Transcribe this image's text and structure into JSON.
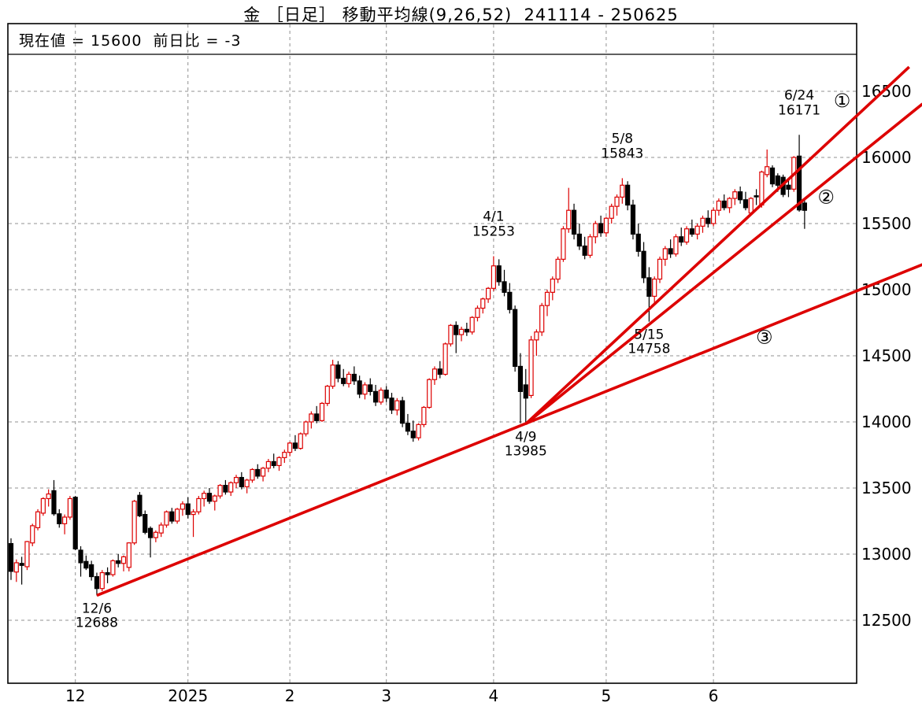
{
  "title": {
    "text": "金 ［日足］ 移動平均線(9,26,52)  241114 - 250625",
    "instrument": "金",
    "timeframe": "日足",
    "indicator": "移動平均線(9,26,52)",
    "ma_periods": [
      9,
      26,
      52
    ],
    "period": "241114 - 250625"
  },
  "status": {
    "text": "現在値 = 15600  前日比 = -3",
    "label_current": "現在値",
    "current_value": "15600",
    "label_change": "前日比",
    "change_value": "-3"
  },
  "colors": {
    "up_candle": "#dd0000",
    "down_candle": "#000000",
    "trendline": "#dd0000",
    "grid": "#909090",
    "frame": "#000000",
    "background": "#ffffff"
  },
  "chart_data": {
    "type": "candlestick",
    "title": "金 ［日足］ 移動平均線(9,26,52)  241114 - 250625",
    "ylim": [
      12000,
      17000
    ],
    "y_ticks": [
      16500,
      16000,
      15500,
      15000,
      14500,
      14000,
      13500,
      13000,
      12500
    ],
    "x_ticks": [
      {
        "label": "12",
        "day": 12
      },
      {
        "label": "2025",
        "day": 33
      },
      {
        "label": "2",
        "day": 52
      },
      {
        "label": "3",
        "day": 70
      },
      {
        "label": "4",
        "day": 90
      },
      {
        "label": "5",
        "day": 111
      },
      {
        "label": "6",
        "day": 131
      }
    ],
    "candles_format": [
      "open",
      "high",
      "low",
      "close"
    ],
    "candles": [
      [
        13080,
        13120,
        12805,
        12870
      ],
      [
        12865,
        12960,
        12790,
        12935
      ],
      [
        12930,
        12980,
        12770,
        12915
      ],
      [
        12905,
        13100,
        12880,
        13095
      ],
      [
        13085,
        13230,
        13060,
        13215
      ],
      [
        13200,
        13340,
        13180,
        13320
      ],
      [
        13310,
        13430,
        13290,
        13420
      ],
      [
        13420,
        13490,
        13360,
        13455
      ],
      [
        13480,
        13560,
        13290,
        13305
      ],
      [
        13305,
        13340,
        13200,
        13230
      ],
      [
        13230,
        13300,
        13150,
        13280
      ],
      [
        13280,
        13440,
        13260,
        13420
      ],
      [
        13430,
        13440,
        13030,
        13040
      ],
      [
        13030,
        13060,
        12830,
        12935
      ],
      [
        12945,
        12990,
        12880,
        12895
      ],
      [
        12920,
        12950,
        12800,
        12830
      ],
      [
        12830,
        12860,
        12688,
        12740
      ],
      [
        12740,
        12880,
        12720,
        12860
      ],
      [
        12860,
        12900,
        12780,
        12845
      ],
      [
        12845,
        12960,
        12830,
        12950
      ],
      [
        12950,
        13000,
        12900,
        12930
      ],
      [
        12930,
        12990,
        12870,
        12980
      ],
      [
        12900,
        13090,
        12870,
        13085
      ],
      [
        13085,
        13410,
        13070,
        13400
      ],
      [
        13445,
        13470,
        13280,
        13290
      ],
      [
        13300,
        13330,
        13150,
        13165
      ],
      [
        13195,
        13210,
        12975,
        13125
      ],
      [
        13125,
        13180,
        13090,
        13165
      ],
      [
        13160,
        13240,
        13130,
        13220
      ],
      [
        13220,
        13330,
        13200,
        13320
      ],
      [
        13320,
        13350,
        13230,
        13250
      ],
      [
        13250,
        13350,
        13230,
        13340
      ],
      [
        13340,
        13400,
        13290,
        13380
      ],
      [
        13380,
        13430,
        13270,
        13300
      ],
      [
        13300,
        13340,
        13130,
        13320
      ],
      [
        13320,
        13440,
        13300,
        13420
      ],
      [
        13420,
        13480,
        13360,
        13460
      ],
      [
        13460,
        13500,
        13380,
        13400
      ],
      [
        13400,
        13450,
        13330,
        13440
      ],
      [
        13440,
        13530,
        13420,
        13520
      ],
      [
        13520,
        13560,
        13450,
        13470
      ],
      [
        13470,
        13550,
        13440,
        13540
      ],
      [
        13540,
        13600,
        13500,
        13580
      ],
      [
        13580,
        13620,
        13490,
        13510
      ],
      [
        13510,
        13570,
        13460,
        13560
      ],
      [
        13560,
        13650,
        13540,
        13640
      ],
      [
        13640,
        13680,
        13570,
        13590
      ],
      [
        13590,
        13660,
        13550,
        13650
      ],
      [
        13650,
        13720,
        13620,
        13700
      ],
      [
        13700,
        13760,
        13650,
        13670
      ],
      [
        13670,
        13740,
        13630,
        13730
      ],
      [
        13730,
        13790,
        13690,
        13770
      ],
      [
        13770,
        13850,
        13740,
        13840
      ],
      [
        13840,
        13900,
        13780,
        13800
      ],
      [
        13800,
        13920,
        13790,
        13910
      ],
      [
        13910,
        14010,
        13890,
        14000
      ],
      [
        14000,
        14080,
        13950,
        14060
      ],
      [
        14060,
        14120,
        13990,
        14010
      ],
      [
        14010,
        14150,
        14000,
        14140
      ],
      [
        14140,
        14280,
        14120,
        14270
      ],
      [
        14270,
        14470,
        14250,
        14430
      ],
      [
        14430,
        14460,
        14300,
        14330
      ],
      [
        14330,
        14400,
        14270,
        14290
      ],
      [
        14290,
        14380,
        14260,
        14360
      ],
      [
        14360,
        14420,
        14280,
        14310
      ],
      [
        14310,
        14350,
        14180,
        14210
      ],
      [
        14210,
        14300,
        14170,
        14280
      ],
      [
        14280,
        14330,
        14200,
        14230
      ],
      [
        14230,
        14280,
        14120,
        14150
      ],
      [
        14150,
        14260,
        14130,
        14240
      ],
      [
        14240,
        14270,
        14150,
        14180
      ],
      [
        14180,
        14220,
        14060,
        14090
      ],
      [
        14090,
        14180,
        14050,
        14160
      ],
      [
        14160,
        14190,
        13960,
        13990
      ],
      [
        13990,
        14060,
        13900,
        13930
      ],
      [
        13930,
        14010,
        13850,
        13880
      ],
      [
        13880,
        13990,
        13860,
        13980
      ],
      [
        13980,
        14120,
        13960,
        14110
      ],
      [
        14110,
        14330,
        14100,
        14320
      ],
      [
        14320,
        14420,
        14280,
        14400
      ],
      [
        14400,
        14460,
        14330,
        14360
      ],
      [
        14360,
        14600,
        14350,
        14590
      ],
      [
        14590,
        14740,
        14570,
        14730
      ],
      [
        14730,
        14760,
        14520,
        14660
      ],
      [
        14660,
        14720,
        14610,
        14700
      ],
      [
        14700,
        14750,
        14650,
        14680
      ],
      [
        14680,
        14800,
        14660,
        14790
      ],
      [
        14790,
        14880,
        14760,
        14860
      ],
      [
        14860,
        14940,
        14820,
        14930
      ],
      [
        14930,
        15020,
        14900,
        15010
      ],
      [
        15010,
        15253,
        14990,
        15180
      ],
      [
        15180,
        15230,
        15030,
        15060
      ],
      [
        15060,
        15150,
        14950,
        14980
      ],
      [
        14980,
        15050,
        14820,
        14850
      ],
      [
        14850,
        14880,
        14380,
        14420
      ],
      [
        14420,
        14520,
        13990,
        14230
      ],
      [
        14280,
        14400,
        13985,
        14180
      ],
      [
        14200,
        14650,
        14180,
        14620
      ],
      [
        14620,
        14700,
        14500,
        14680
      ],
      [
        14680,
        14900,
        14650,
        14880
      ],
      [
        14880,
        15000,
        14800,
        14980
      ],
      [
        14980,
        15100,
        14920,
        15080
      ],
      [
        15080,
        15250,
        15050,
        15230
      ],
      [
        15230,
        15480,
        15210,
        15460
      ],
      [
        15460,
        15770,
        15430,
        15600
      ],
      [
        15600,
        15650,
        15380,
        15420
      ],
      [
        15420,
        15500,
        15300,
        15330
      ],
      [
        15330,
        15400,
        15230,
        15260
      ],
      [
        15260,
        15420,
        15240,
        15400
      ],
      [
        15400,
        15520,
        15350,
        15500
      ],
      [
        15500,
        15560,
        15400,
        15430
      ],
      [
        15430,
        15550,
        15400,
        15540
      ],
      [
        15540,
        15650,
        15500,
        15630
      ],
      [
        15630,
        15720,
        15560,
        15700
      ],
      [
        15700,
        15843,
        15650,
        15790
      ],
      [
        15790,
        15820,
        15600,
        15640
      ],
      [
        15640,
        15680,
        15380,
        15420
      ],
      [
        15420,
        15500,
        15250,
        15290
      ],
      [
        15290,
        15360,
        15050,
        15090
      ],
      [
        15090,
        15170,
        14758,
        14950
      ],
      [
        14950,
        15100,
        14900,
        15080
      ],
      [
        15080,
        15250,
        15050,
        15230
      ],
      [
        15230,
        15330,
        15180,
        15310
      ],
      [
        15310,
        15380,
        15240,
        15270
      ],
      [
        15270,
        15420,
        15250,
        15400
      ],
      [
        15400,
        15470,
        15330,
        15360
      ],
      [
        15360,
        15480,
        15340,
        15460
      ],
      [
        15460,
        15530,
        15400,
        15420
      ],
      [
        15420,
        15500,
        15380,
        15480
      ],
      [
        15480,
        15560,
        15430,
        15540
      ],
      [
        15540,
        15600,
        15470,
        15500
      ],
      [
        15500,
        15620,
        15480,
        15600
      ],
      [
        15600,
        15690,
        15560,
        15670
      ],
      [
        15670,
        15720,
        15600,
        15620
      ],
      [
        15620,
        15700,
        15580,
        15690
      ],
      [
        15690,
        15760,
        15640,
        15740
      ],
      [
        15740,
        15780,
        15650,
        15680
      ],
      [
        15680,
        15740,
        15600,
        15620
      ],
      [
        15580,
        15700,
        15560,
        15690
      ],
      [
        15710,
        15760,
        15640,
        15705
      ],
      [
        15640,
        15900,
        15620,
        15890
      ],
      [
        15870,
        16060,
        15850,
        15930
      ],
      [
        15920,
        15940,
        15775,
        15800
      ],
      [
        15860,
        15880,
        15740,
        15790
      ],
      [
        15850,
        15870,
        15700,
        15720
      ],
      [
        15790,
        15830,
        15700,
        15760
      ],
      [
        15760,
        16010,
        15740,
        16000
      ],
      [
        16010,
        16171,
        15590,
        15603
      ],
      [
        15655,
        15680,
        15460,
        15600
      ]
    ],
    "annotations": [
      {
        "date": "12/6",
        "price": "12688",
        "day": 16,
        "value": 12688,
        "side": "below"
      },
      {
        "date": "4/1",
        "price": "15253",
        "day": 90,
        "value": 15253,
        "side": "above"
      },
      {
        "date": "4/9",
        "price": "13985",
        "day": 96,
        "value": 13985,
        "side": "below"
      },
      {
        "date": "5/8",
        "price": "15843",
        "day": 114,
        "value": 15843,
        "side": "above"
      },
      {
        "date": "5/15",
        "price": "14758",
        "day": 119,
        "value": 14758,
        "side": "below"
      },
      {
        "date": "6/24",
        "price": "16171",
        "day": 147,
        "value": 16171,
        "side": "above"
      }
    ],
    "trendlines": [
      {
        "label": "①",
        "x1_day": 96,
        "y1": 13985,
        "x2_day": 167.5,
        "y2": 16684
      },
      {
        "label": "②",
        "x1_day": 96,
        "y1": 13985,
        "x2_day": 170,
        "y2": 16405
      },
      {
        "label": "③",
        "x1_day": 16,
        "y1": 12688,
        "x2_day": 170,
        "y2": 15190
      }
    ],
    "trendline_labels": [
      {
        "text": "①",
        "day": 155,
        "value": 16430
      },
      {
        "text": "②",
        "day": 152,
        "value": 15700
      },
      {
        "text": "③",
        "day": 140.5,
        "value": 14640
      }
    ]
  }
}
